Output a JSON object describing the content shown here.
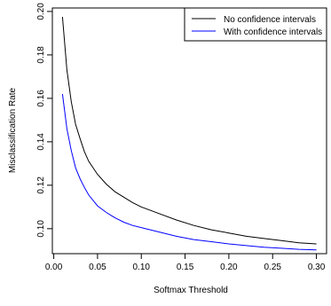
{
  "chart_data": {
    "type": "line",
    "xlabel": "Softmax Threshold",
    "ylabel": "Misclassification Rate",
    "xlim": [
      0.0,
      0.3
    ],
    "ylim": [
      0.09,
      0.2
    ],
    "x_ticks": [
      "0.00",
      "0.05",
      "0.10",
      "0.15",
      "0.20",
      "0.25",
      "0.30"
    ],
    "x_tick_values": [
      0.0,
      0.05,
      0.1,
      0.15,
      0.2,
      0.25,
      0.3
    ],
    "y_ticks": [
      "0.10",
      "0.12",
      "0.14",
      "0.16",
      "0.18",
      "0.20"
    ],
    "y_tick_values": [
      0.1,
      0.12,
      0.14,
      0.16,
      0.18,
      0.2
    ],
    "grid": false,
    "legend_position": "top-right",
    "x": [
      0.01,
      0.015,
      0.02,
      0.025,
      0.03,
      0.035,
      0.04,
      0.05,
      0.06,
      0.07,
      0.08,
      0.09,
      0.1,
      0.12,
      0.14,
      0.16,
      0.18,
      0.2,
      0.22,
      0.24,
      0.26,
      0.28,
      0.3
    ],
    "series": [
      {
        "name": "No confidence intervals",
        "color": "#000000",
        "values": [
          0.1975,
          0.173,
          0.1585,
          0.148,
          0.1415,
          0.1355,
          0.131,
          0.125,
          0.1205,
          0.117,
          0.1145,
          0.112,
          0.11,
          0.107,
          0.104,
          0.1015,
          0.0995,
          0.098,
          0.0965,
          0.0955,
          0.0945,
          0.0935,
          0.093
        ]
      },
      {
        "name": "With confidence intervals",
        "color": "#0000ff",
        "values": [
          0.162,
          0.146,
          0.136,
          0.128,
          0.123,
          0.119,
          0.1155,
          0.1105,
          0.1075,
          0.105,
          0.103,
          0.1015,
          0.1005,
          0.0985,
          0.0965,
          0.095,
          0.094,
          0.093,
          0.0922,
          0.0915,
          0.091,
          0.0905,
          0.0902
        ]
      }
    ]
  }
}
